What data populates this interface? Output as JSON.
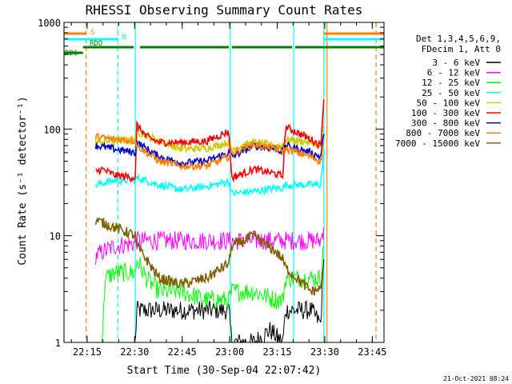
{
  "chart_data": {
    "type": "line",
    "title": "RHESSI Observing Summary Count Rates",
    "xlabel": "Start Time (30-Sep-04 22:07:42)",
    "ylabel": "Count Rate (s⁻¹ detector⁻¹)",
    "y_scale": "log",
    "ylim": [
      1,
      1000
    ],
    "xlim_minutes": [
      0,
      101
    ],
    "x_ticks": [
      {
        "label": "22:15",
        "minute": 7.3
      },
      {
        "label": "22:30",
        "minute": 22.3
      },
      {
        "label": "22:45",
        "minute": 37.3
      },
      {
        "label": "23:00",
        "minute": 52.3
      },
      {
        "label": "23:15",
        "minute": 67.3
      },
      {
        "label": "23:30",
        "minute": 82.3
      },
      {
        "label": "23:45",
        "minute": 97.3
      }
    ],
    "y_ticks": [
      {
        "label": "1",
        "value": 1
      },
      {
        "label": "10",
        "value": 10
      },
      {
        "label": "100",
        "value": 100
      },
      {
        "label": "1000",
        "value": 1000
      }
    ],
    "legend_header": [
      "Det 1,3,4,5,6,9,",
      "FDecim 1, Att 0"
    ],
    "legend_position": "right",
    "series": [
      {
        "name": "3 - 6 keV",
        "color": "#000000",
        "pts": [
          [
            22.5,
            1
          ],
          [
            23,
            2
          ],
          [
            30,
            2
          ],
          [
            37,
            2
          ],
          [
            45,
            2
          ],
          [
            52,
            2
          ],
          [
            53,
            1
          ],
          [
            60,
            1
          ],
          [
            65,
            1.3
          ],
          [
            69,
            1
          ],
          [
            70,
            2
          ],
          [
            78,
            2
          ],
          [
            81,
            1.5
          ],
          [
            82,
            6
          ]
        ]
      },
      {
        "name": "6 - 12 keV",
        "color": "#ff00ff",
        "pts": [
          [
            10,
            6.5
          ],
          [
            12,
            7
          ],
          [
            14,
            7.5
          ],
          [
            16,
            8
          ],
          [
            22.5,
            8.5
          ],
          [
            23,
            9
          ],
          [
            30,
            9
          ],
          [
            37,
            9
          ],
          [
            45,
            9
          ],
          [
            52,
            9
          ],
          [
            53,
            9
          ],
          [
            60,
            9
          ],
          [
            67,
            9
          ],
          [
            69,
            9
          ],
          [
            70,
            9
          ],
          [
            78,
            9
          ],
          [
            81,
            9
          ],
          [
            82,
            12
          ]
        ]
      },
      {
        "name": "12 - 25 keV",
        "color": "#00ff00",
        "pts": [
          [
            12,
            1
          ],
          [
            13,
            4
          ],
          [
            16,
            4.5
          ],
          [
            22.5,
            4.5
          ],
          [
            23,
            6
          ],
          [
            26,
            4
          ],
          [
            30,
            3
          ],
          [
            37,
            3
          ],
          [
            45,
            2.5
          ],
          [
            52,
            2.5
          ],
          [
            53,
            3
          ],
          [
            60,
            3
          ],
          [
            67,
            2.5
          ],
          [
            69,
            2.5
          ],
          [
            70,
            4
          ],
          [
            78,
            4
          ],
          [
            81,
            4
          ],
          [
            82,
            8
          ]
        ]
      },
      {
        "name": "25 - 50 keV",
        "color": "#00ffff",
        "pts": [
          [
            10,
            30
          ],
          [
            16,
            33
          ],
          [
            22.5,
            33
          ],
          [
            23,
            35
          ],
          [
            30,
            30
          ],
          [
            37,
            27
          ],
          [
            45,
            29
          ],
          [
            52,
            32
          ],
          [
            53,
            25
          ],
          [
            60,
            26
          ],
          [
            67,
            28
          ],
          [
            69,
            28
          ],
          [
            70,
            30
          ],
          [
            78,
            30
          ],
          [
            81,
            30
          ],
          [
            82,
            60
          ]
        ]
      },
      {
        "name": "50 - 100 keV",
        "color": "#cccc00",
        "pts": [
          [
            10,
            75
          ],
          [
            16,
            78
          ],
          [
            22.5,
            80
          ],
          [
            23,
            95
          ],
          [
            30,
            78
          ],
          [
            37,
            65
          ],
          [
            45,
            66
          ],
          [
            52,
            75
          ],
          [
            53,
            65
          ],
          [
            60,
            75
          ],
          [
            67,
            70
          ],
          [
            69,
            70
          ],
          [
            70,
            80
          ],
          [
            78,
            75
          ],
          [
            81,
            70
          ],
          [
            82,
            110
          ]
        ]
      },
      {
        "name": "100 - 300 keV",
        "color": "#ff0000",
        "pts": [
          [
            10,
            40
          ],
          [
            12,
            42
          ],
          [
            16,
            37
          ],
          [
            22.5,
            35
          ],
          [
            23,
            110
          ],
          [
            26,
            85
          ],
          [
            30,
            75
          ],
          [
            37,
            75
          ],
          [
            45,
            77
          ],
          [
            52,
            95
          ],
          [
            53,
            35
          ],
          [
            60,
            42
          ],
          [
            67,
            38
          ],
          [
            69,
            36
          ],
          [
            70,
            105
          ],
          [
            78,
            80
          ],
          [
            81,
            70
          ],
          [
            82,
            190
          ]
        ]
      },
      {
        "name": "300 - 800 keV",
        "color": "#0000cc",
        "pts": [
          [
            10,
            70
          ],
          [
            16,
            65
          ],
          [
            22.5,
            60
          ],
          [
            23,
            75
          ],
          [
            30,
            55
          ],
          [
            37,
            48
          ],
          [
            45,
            50
          ],
          [
            52,
            60
          ],
          [
            53,
            55
          ],
          [
            60,
            70
          ],
          [
            67,
            65
          ],
          [
            69,
            62
          ],
          [
            70,
            70
          ],
          [
            78,
            60
          ],
          [
            81,
            55
          ],
          [
            82,
            90
          ]
        ]
      },
      {
        "name": "800 - 7000 keV",
        "color": "#ff8000",
        "pts": [
          [
            10,
            85
          ],
          [
            12,
            83
          ],
          [
            16,
            80
          ],
          [
            22.5,
            78
          ],
          [
            23,
            70
          ],
          [
            30,
            50
          ],
          [
            37,
            45
          ],
          [
            45,
            45
          ],
          [
            52,
            55
          ],
          [
            53,
            60
          ],
          [
            60,
            72
          ],
          [
            67,
            65
          ],
          [
            69,
            63
          ],
          [
            70,
            65
          ],
          [
            78,
            55
          ],
          [
            81,
            50
          ],
          [
            82,
            75
          ]
        ]
      },
      {
        "name": "7000 - 15000 keV",
        "color": "#806000",
        "pts": [
          [
            10,
            14
          ],
          [
            16,
            12
          ],
          [
            22.5,
            10
          ],
          [
            23,
            8
          ],
          [
            26,
            6
          ],
          [
            30,
            4
          ],
          [
            37,
            3.5
          ],
          [
            45,
            4
          ],
          [
            52,
            5.5
          ],
          [
            53,
            8
          ],
          [
            60,
            10
          ],
          [
            67,
            7
          ],
          [
            69,
            6
          ],
          [
            70,
            5
          ],
          [
            78,
            3
          ],
          [
            81,
            3.2
          ],
          [
            82,
            5
          ]
        ]
      }
    ],
    "state_bars": [
      {
        "label": "S",
        "color": "#ff8000",
        "level": 1,
        "spans": [
          [
            0,
            7
          ],
          [
            82,
            101
          ]
        ]
      },
      {
        "label": "N",
        "color": "#00ffff",
        "level": 2,
        "spans": [
          [
            0,
            17
          ],
          [
            82,
            101
          ]
        ]
      },
      {
        "label": "RDO",
        "color": "#008000",
        "level": 3,
        "spans": [
          [
            6,
            22
          ],
          [
            24,
            52
          ],
          [
            53,
            72
          ],
          [
            73,
            101
          ]
        ]
      },
      {
        "label": "RD6",
        "color": "#008000",
        "level": 4,
        "spans": [
          [
            0,
            6
          ]
        ]
      }
    ],
    "vlines": [
      {
        "minute": 7,
        "color": "#ff8000",
        "style": "dashed"
      },
      {
        "minute": 17,
        "color": "#00ffff",
        "style": "dashed"
      },
      {
        "minute": 82,
        "color": "#00ffff",
        "style": "solid"
      },
      {
        "minute": 83,
        "color": "#ff8000",
        "style": "solid"
      },
      {
        "minute": 98.5,
        "color": "#ff8000",
        "style": "dashed"
      },
      {
        "minute": 0,
        "color": "#00ffff",
        "style": "solid"
      },
      {
        "minute": 22.5,
        "color": "#00ffff",
        "style": "solid"
      },
      {
        "minute": 52.5,
        "color": "#00ffff",
        "style": "solid"
      },
      {
        "minute": 72.5,
        "color": "#00ffff",
        "style": "solid"
      }
    ],
    "footer_date": "21-Oct-2021 08:24"
  }
}
